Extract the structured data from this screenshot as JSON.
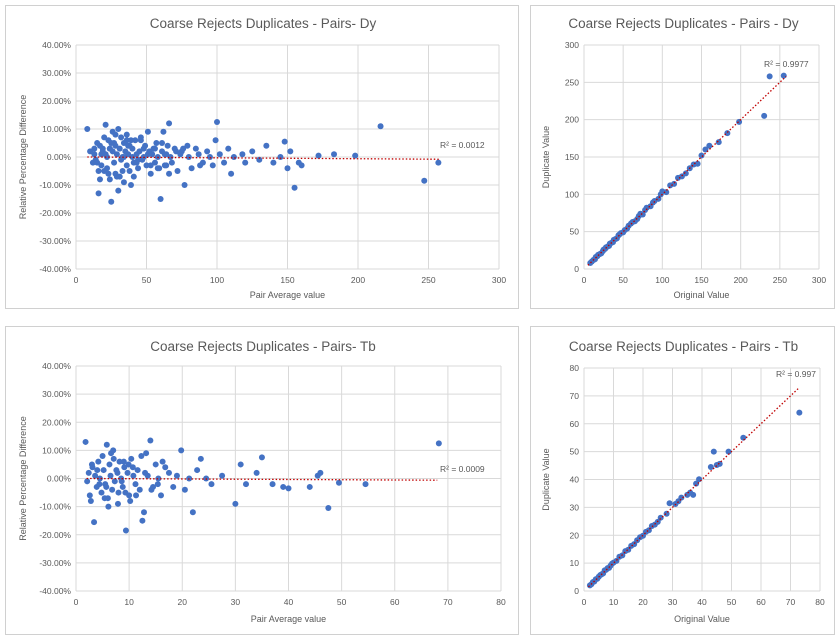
{
  "chart_data": [
    {
      "type": "scatter",
      "title": "Coarse Rejects Duplicates - Pairs- Dy",
      "xlabel": "Pair Average value",
      "ylabel": "Relative Percentage Difference",
      "xlim": [
        0,
        300
      ],
      "ylim": [
        -0.4,
        0.4
      ],
      "xticks": [
        "0",
        "50",
        "100",
        "150",
        "200",
        "250",
        "300"
      ],
      "yticks": [
        "-40.00%",
        "-30.00%",
        "-20.00%",
        "-10.00%",
        "0.00%",
        "10.00%",
        "20.00%",
        "30.00%",
        "40.00%"
      ],
      "grid": true,
      "trendline": {
        "type": "linear",
        "r2_label": "R² = 0.0012",
        "x": [
          8,
          258
        ],
        "y": [
          0.0,
          -0.008
        ]
      },
      "marker_color": "#4472c4",
      "trend_color": "#c00000",
      "series": [
        {
          "x": [
            8,
            10,
            12,
            13,
            14,
            15,
            16,
            17,
            18,
            18,
            19,
            20,
            20,
            21,
            22,
            22,
            23,
            24,
            24,
            25,
            26,
            26,
            27,
            28,
            28,
            29,
            30,
            30,
            31,
            32,
            32,
            33,
            34,
            34,
            35,
            36,
            36,
            37,
            38,
            38,
            39,
            40,
            40,
            41,
            42,
            43,
            44,
            45,
            46,
            47,
            48,
            49,
            50,
            51,
            52,
            53,
            54,
            55,
            56,
            57,
            58,
            59,
            60,
            61,
            62,
            63,
            64,
            65,
            66,
            67,
            68,
            70,
            72,
            74,
            75,
            77,
            79,
            80,
            82,
            85,
            87,
            90,
            93,
            95,
            97,
            99,
            100,
            102,
            105,
            108,
            110,
            112,
            118,
            120,
            125,
            130,
            135,
            140,
            145,
            148,
            150,
            152,
            155,
            158,
            160,
            172,
            183,
            198,
            216,
            247,
            257,
            15,
            19,
            23,
            25,
            28,
            33,
            37,
            41,
            46,
            53,
            61,
            66,
            76,
            88,
            16,
            21,
            27,
            31,
            36,
            43,
            48,
            58,
            64,
            71,
            13,
            17,
            24,
            29,
            34,
            39,
            44,
            51,
            56,
            63
          ],
          "y": [
            0.1,
            0.02,
            -0.02,
            0.03,
            -0.01,
            0.05,
            -0.13,
            0.04,
            0.01,
            -0.03,
            0.02,
            0.07,
            -0.05,
            0.115,
            0.0,
            -0.04,
            0.06,
            0.03,
            -0.08,
            -0.16,
            0.02,
            0.09,
            -0.02,
            0.04,
            -0.06,
            0.01,
            0.1,
            -0.12,
            0.03,
            -0.01,
            0.07,
            0.0,
            0.05,
            -0.09,
            0.02,
            0.08,
            -0.03,
            0.01,
            -0.05,
            0.04,
            -0.1,
            0.03,
            0.0,
            -0.02,
            0.06,
            0.01,
            -0.04,
            0.02,
            0.07,
            -0.01,
            0.0,
            0.04,
            -0.03,
            0.09,
            0.02,
            -0.06,
            0.01,
            0.03,
            -0.02,
            0.05,
            0.0,
            -0.04,
            -0.15,
            0.02,
            0.09,
            0.01,
            -0.03,
            0.04,
            0.12,
            0.0,
            -0.02,
            0.03,
            -0.05,
            0.01,
            0.02,
            -0.1,
            0.04,
            0.0,
            -0.04,
            0.03,
            0.01,
            -0.02,
            0.02,
            0.0,
            -0.03,
            0.06,
            0.125,
            0.01,
            -0.02,
            0.03,
            -0.06,
            0.0,
            0.01,
            -0.02,
            0.02,
            -0.01,
            0.04,
            -0.02,
            0.0,
            0.055,
            -0.04,
            0.02,
            -0.11,
            -0.02,
            -0.03,
            0.005,
            0.01,
            0.005,
            0.11,
            -0.085,
            -0.02,
            -0.02,
            0.03,
            -0.06,
            0.05,
            0.08,
            -0.05,
            0.04,
            -0.07,
            0.06,
            -0.03,
            0.05,
            -0.06,
            0.03,
            -0.03,
            -0.05,
            0.01,
            0.05,
            -0.07,
            0.06,
            -0.02,
            0.03,
            -0.04,
            0.01,
            0.02,
            0.01,
            -0.08,
            0.03,
            -0.07,
            0.0,
            0.06,
            -0.01,
            0.01,
            0.03,
            -0.03
          ]
        }
      ]
    },
    {
      "type": "scatter",
      "title": "Coarse Rejects Duplicates - Pairs - Dy",
      "xlabel": "Original Value",
      "ylabel": "Duplicate Value",
      "xlim": [
        0,
        300
      ],
      "ylim": [
        0,
        300
      ],
      "xticks": [
        "0",
        "50",
        "100",
        "150",
        "200",
        "250",
        "300"
      ],
      "yticks": [
        "0",
        "50",
        "100",
        "150",
        "200",
        "250",
        "300"
      ],
      "grid": true,
      "trendline": {
        "type": "linear",
        "r2_label": "R² = 0.9977",
        "x": [
          5,
          258
        ],
        "y": [
          5,
          258
        ]
      },
      "marker_color": "#4472c4",
      "trend_color": "#c00000",
      "series": [
        {
          "x": [
            8,
            10,
            12,
            14,
            15,
            17,
            18,
            20,
            22,
            24,
            25,
            27,
            28,
            30,
            32,
            33,
            35,
            37,
            38,
            40,
            42,
            44,
            45,
            47,
            50,
            52,
            55,
            57,
            60,
            62,
            65,
            68,
            70,
            72,
            75,
            78,
            80,
            85,
            88,
            90,
            95,
            98,
            100,
            105,
            110,
            115,
            120,
            125,
            130,
            135,
            140,
            145,
            150,
            155,
            160,
            172,
            183,
            198,
            230,
            237,
            255
          ],
          "y": [
            8,
            10,
            12,
            13,
            16,
            17,
            19,
            20,
            21,
            24,
            26,
            27,
            29,
            30,
            31,
            34,
            35,
            36,
            39,
            40,
            41,
            45,
            46,
            48,
            49,
            52,
            54,
            58,
            61,
            63,
            64,
            67,
            71,
            74,
            73,
            79,
            82,
            84,
            89,
            91,
            94,
            100,
            104,
            103,
            112,
            114,
            122,
            124,
            128,
            135,
            140,
            141,
            152,
            160,
            165,
            170,
            182,
            197,
            205,
            258,
            259
          ]
        }
      ]
    },
    {
      "type": "scatter",
      "title": "Coarse Rejects Duplicates - Pairs- Tb",
      "xlabel": "Pair Average value",
      "ylabel": "Relative Percentage Difference",
      "xlim": [
        0,
        80
      ],
      "ylim": [
        -0.4,
        0.4
      ],
      "xticks": [
        "0",
        "10",
        "20",
        "30",
        "40",
        "50",
        "60",
        "70",
        "80"
      ],
      "yticks": [
        "-40.00%",
        "-30.00%",
        "-20.00%",
        "-10.00%",
        "0.00%",
        "10.00%",
        "20.00%",
        "30.00%",
        "40.00%"
      ],
      "grid": true,
      "trendline": {
        "type": "linear",
        "r2_label": "R² = 0.0009",
        "x": [
          2,
          68
        ],
        "y": [
          0.0,
          -0.006
        ]
      },
      "marker_color": "#4472c4",
      "trend_color": "#c00000",
      "series": [
        {
          "x": [
            1.8,
            2.1,
            2.4,
            2.8,
            3.1,
            3.4,
            3.6,
            3.9,
            4.2,
            4.5,
            4.8,
            5.0,
            5.2,
            5.5,
            5.8,
            6.0,
            6.3,
            6.5,
            6.8,
            7.0,
            7.3,
            7.6,
            7.9,
            8.2,
            8.5,
            8.8,
            9.1,
            9.4,
            9.7,
            10.0,
            10.4,
            10.8,
            11.2,
            11.6,
            12.0,
            12.5,
            13.0,
            13.5,
            14.0,
            14.5,
            15.0,
            15.5,
            16.0,
            16.8,
            17.5,
            18.3,
            19.0,
            19.8,
            20.5,
            21.3,
            22.0,
            22.8,
            23.5,
            24.5,
            25.5,
            27.5,
            30.0,
            31.0,
            32.0,
            34.0,
            35.0,
            37.0,
            39.0,
            40.0,
            44.0,
            45.5,
            46.0,
            47.5,
            49.5,
            54.5,
            68.3,
            3.0,
            5.4,
            6.6,
            8.0,
            9.0,
            10.2,
            12.3,
            14.2,
            2.6,
            4.0,
            5.7,
            7.1,
            8.6,
            9.9,
            11.3,
            13.2,
            15.4,
            6.1,
            7.8,
            9.3,
            10.7,
            4.4,
            12.8,
            16.3
          ],
          "y": [
            0.13,
            -0.01,
            0.02,
            -0.08,
            0.04,
            -0.155,
            0.01,
            -0.03,
            0.06,
            0.0,
            -0.05,
            0.08,
            0.03,
            -0.02,
            0.12,
            -0.07,
            0.05,
            0.01,
            -0.04,
            0.1,
            -0.01,
            0.03,
            -0.09,
            0.06,
            0.0,
            -0.03,
            0.04,
            -0.185,
            0.02,
            -0.06,
            0.07,
            0.01,
            -0.02,
            0.03,
            -0.04,
            -0.15,
            0.02,
            0.01,
            0.135,
            -0.03,
            0.05,
            0.0,
            -0.06,
            0.04,
            0.02,
            -0.03,
            0.01,
            0.1,
            -0.04,
            0.0,
            -0.12,
            0.03,
            0.07,
            0.0,
            -0.02,
            0.01,
            -0.09,
            0.05,
            -0.02,
            0.02,
            0.075,
            -0.02,
            -0.03,
            -0.035,
            -0.03,
            0.01,
            0.02,
            -0.105,
            -0.015,
            -0.02,
            0.125,
            0.05,
            -0.07,
            0.09,
            -0.05,
            0.06,
            -0.08,
            0.08,
            -0.04,
            -0.06,
            0.03,
            -0.03,
            0.07,
            -0.01,
            0.05,
            -0.06,
            0.09,
            -0.02,
            -0.1,
            0.02,
            -0.05,
            0.04,
            -0.02,
            -0.12,
            0.06
          ]
        }
      ]
    },
    {
      "type": "scatter",
      "title": "Coarse Rejects Duplicates - Pairs - Tb",
      "xlabel": "Original Value",
      "ylabel": "Duplicate Value",
      "xlim": [
        0,
        80
      ],
      "ylim": [
        0,
        80
      ],
      "xticks": [
        "0",
        "10",
        "20",
        "30",
        "40",
        "50",
        "60",
        "70",
        "80"
      ],
      "yticks": [
        "0",
        "10",
        "20",
        "30",
        "40",
        "50",
        "60",
        "70",
        "80"
      ],
      "grid": true,
      "trendline": {
        "type": "linear",
        "r2_label": "R² = 0.997",
        "x": [
          1.5,
          73
        ],
        "y": [
          1.5,
          73
        ]
      },
      "marker_color": "#4472c4",
      "trend_color": "#c00000",
      "series": [
        {
          "x": [
            2,
            2.5,
            3,
            3.5,
            4,
            4.5,
            5,
            5.5,
            6,
            6.5,
            7,
            7.5,
            8,
            8.5,
            9,
            9.5,
            10,
            11,
            12,
            13,
            14,
            15,
            16,
            17,
            18,
            19,
            20,
            21,
            22,
            23,
            24,
            25,
            26,
            28,
            29,
            31,
            32,
            33,
            35,
            36,
            37,
            38,
            39,
            43,
            44,
            45,
            46,
            49,
            54,
            73
          ],
          "y": [
            2,
            2.4,
            3.2,
            3.4,
            4.2,
            4.4,
            5.1,
            5.7,
            6.0,
            6.3,
            7.4,
            7.6,
            8.2,
            8.3,
            9.1,
            9.8,
            10.2,
            10.8,
            12.3,
            12.8,
            14.3,
            14.8,
            16.2,
            16.8,
            18.2,
            19.3,
            19.8,
            21.2,
            21.8,
            23.3,
            23.8,
            24.8,
            26.3,
            27.7,
            31.5,
            31.2,
            32.2,
            33.5,
            34.5,
            35.3,
            34.5,
            38.5,
            40.1,
            44.5,
            50,
            45.2,
            45.6,
            50,
            55,
            64
          ]
        }
      ]
    }
  ]
}
